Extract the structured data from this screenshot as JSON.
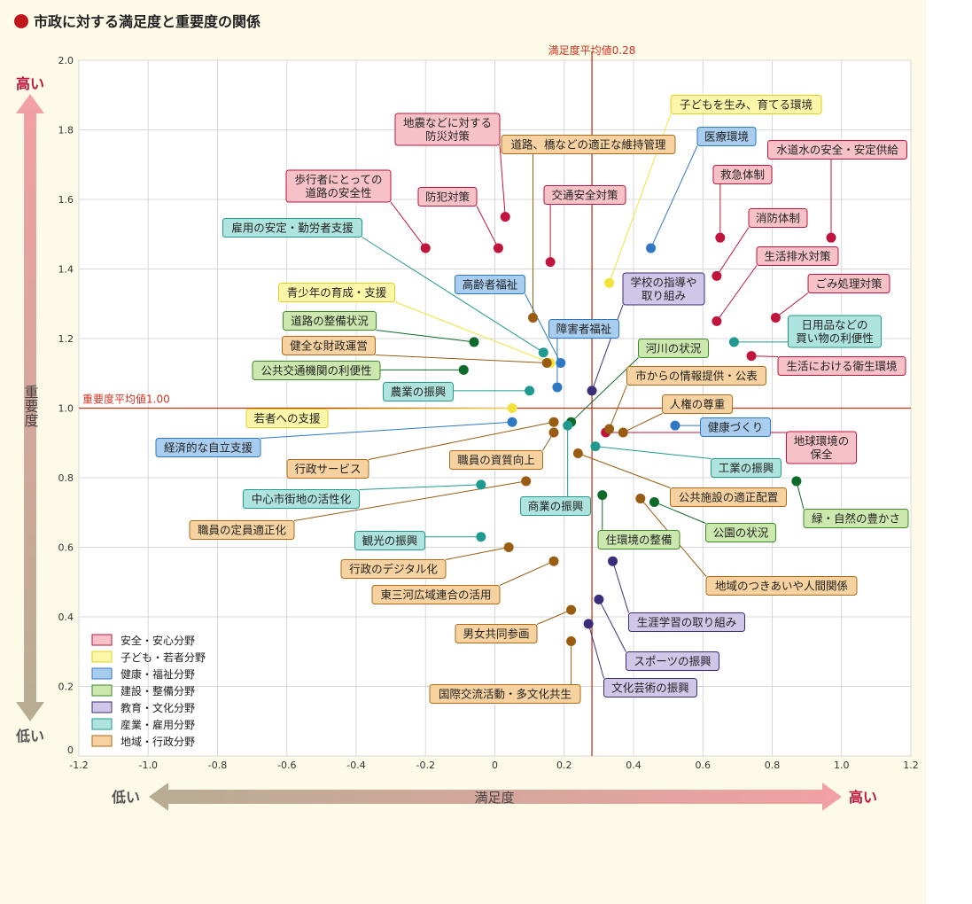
{
  "title": "市政に対する満足度と重要度の関係",
  "title_bullet_color": "#c0161e",
  "chart_data": {
    "type": "scatter",
    "title": "市政に対する満足度と重要度の関係",
    "xlabel": "満足度",
    "ylabel": "重要度",
    "x_low_label": "低い",
    "x_high_label": "高い",
    "y_low_label": "低い",
    "y_high_label": "高い",
    "xlim": [
      -1.2,
      1.2
    ],
    "ylim": [
      0,
      2.0
    ],
    "x_ticks": [
      "-1.2",
      "-1.0",
      "-0.8",
      "-0.6",
      "-0.4",
      "-0.2",
      "0",
      "0.2",
      "0.4",
      "0.6",
      "0.8",
      "1.0",
      "1.2"
    ],
    "y_ticks": [
      "0",
      "0.2",
      "0.4",
      "0.6",
      "0.8",
      "1.0",
      "1.2",
      "1.4",
      "1.6",
      "1.8",
      "2.0"
    ],
    "grid": true,
    "avg_x_value": 0.28,
    "avg_x_label": "満足度平均値0.28",
    "avg_y_value": 1.0,
    "avg_y_label": "重要度平均値1.00",
    "legend_position": "bottom-left",
    "categories": [
      {
        "key": "safety",
        "name": "安全・安心分野",
        "dot": "#c0143c",
        "box_fill": "#f6c2c8",
        "box_border": "#c0143c"
      },
      {
        "key": "kids",
        "name": "子ども・若者分野",
        "dot": "#f3e23a",
        "box_fill": "#fbf6a8",
        "box_border": "#e2cf1e"
      },
      {
        "key": "health",
        "name": "健康・福祉分野",
        "dot": "#2f78c4",
        "box_fill": "#a9cdee",
        "box_border": "#2f78c4"
      },
      {
        "key": "build",
        "name": "建設・整備分野",
        "dot": "#0e6a2a",
        "box_fill": "#cde8ae",
        "box_border": "#3c8a2c"
      },
      {
        "key": "edu",
        "name": "教育・文化分野",
        "dot": "#3a2e7a",
        "box_fill": "#cfc6e8",
        "box_border": "#3a2e7a"
      },
      {
        "key": "industry",
        "name": "産業・雇用分野",
        "dot": "#209a8e",
        "box_fill": "#aee3de",
        "box_border": "#209a8e"
      },
      {
        "key": "region",
        "name": "地域・行政分野",
        "dot": "#9a5c10",
        "box_fill": "#f6d2a0",
        "box_border": "#b0691a"
      }
    ],
    "points": [
      {
        "label": "地震などに対する\n防災対策",
        "cat": "safety",
        "x": 0.03,
        "y": 1.55
      },
      {
        "label": "歩行者にとっての\n道路の安全性",
        "cat": "safety",
        "x": -0.2,
        "y": 1.46
      },
      {
        "label": "防犯対策",
        "cat": "safety",
        "x": 0.01,
        "y": 1.46
      },
      {
        "label": "交通安全対策",
        "cat": "safety",
        "x": 0.16,
        "y": 1.42
      },
      {
        "label": "救急体制",
        "cat": "safety",
        "x": 0.65,
        "y": 1.49
      },
      {
        "label": "水道水の安全・安定供給",
        "cat": "safety",
        "x": 0.97,
        "y": 1.49
      },
      {
        "label": "消防体制",
        "cat": "safety",
        "x": 0.64,
        "y": 1.38
      },
      {
        "label": "生活排水対策",
        "cat": "safety",
        "x": 0.64,
        "y": 1.25
      },
      {
        "label": "ごみ処理対策",
        "cat": "safety",
        "x": 0.81,
        "y": 1.26
      },
      {
        "label": "生活における衛生環境",
        "cat": "safety",
        "x": 0.74,
        "y": 1.15
      },
      {
        "label": "地球環境の\n保全",
        "cat": "safety",
        "x": 0.32,
        "y": 0.93
      },
      {
        "label": "子どもを生み、育てる環境",
        "cat": "kids",
        "x": 0.33,
        "y": 1.36
      },
      {
        "label": "青少年の育成・支援",
        "cat": "kids",
        "x": 0.16,
        "y": 1.13
      },
      {
        "label": "若者への支援",
        "cat": "kids",
        "x": 0.05,
        "y": 1.0
      },
      {
        "label": "医療環境",
        "cat": "health",
        "x": 0.45,
        "y": 1.46
      },
      {
        "label": "高齢者福祉",
        "cat": "health",
        "x": 0.19,
        "y": 1.13
      },
      {
        "label": "障害者福祉",
        "cat": "health",
        "x": 0.18,
        "y": 1.06
      },
      {
        "label": "健康づくり",
        "cat": "health",
        "x": 0.52,
        "y": 0.95
      },
      {
        "label": "経済的な自立支援",
        "cat": "health",
        "x": 0.05,
        "y": 0.96
      },
      {
        "label": "道路の整備状況",
        "cat": "build",
        "x": -0.06,
        "y": 1.19
      },
      {
        "label": "公共交通機関の利便性",
        "cat": "build",
        "x": -0.09,
        "y": 1.11
      },
      {
        "label": "河川の状況",
        "cat": "build",
        "x": 0.22,
        "y": 0.96
      },
      {
        "label": "緑・自然の豊かさ",
        "cat": "build",
        "x": 0.87,
        "y": 0.79
      },
      {
        "label": "住環境の整備",
        "cat": "build",
        "x": 0.31,
        "y": 0.75
      },
      {
        "label": "公園の状況",
        "cat": "build",
        "x": 0.46,
        "y": 0.73
      },
      {
        "label": "学校の指導や\n取り組み",
        "cat": "edu",
        "x": 0.28,
        "y": 1.05
      },
      {
        "label": "生涯学習の取り組み",
        "cat": "edu",
        "x": 0.34,
        "y": 0.56
      },
      {
        "label": "スポーツの振興",
        "cat": "edu",
        "x": 0.3,
        "y": 0.45
      },
      {
        "label": "文化芸術の振興",
        "cat": "edu",
        "x": 0.27,
        "y": 0.38
      },
      {
        "label": "雇用の安定・勤労者支援",
        "cat": "industry",
        "x": 0.14,
        "y": 1.16
      },
      {
        "label": "日用品などの\n買い物の利便性",
        "cat": "industry",
        "x": 0.69,
        "y": 1.19
      },
      {
        "label": "農業の振興",
        "cat": "industry",
        "x": 0.1,
        "y": 1.05
      },
      {
        "label": "商業の振興",
        "cat": "industry",
        "x": 0.21,
        "y": 0.95
      },
      {
        "label": "工業の振興",
        "cat": "industry",
        "x": 0.29,
        "y": 0.89
      },
      {
        "label": "中心市街地の活性化",
        "cat": "industry",
        "x": -0.04,
        "y": 0.78
      },
      {
        "label": "観光の振興",
        "cat": "industry",
        "x": -0.04,
        "y": 0.63
      },
      {
        "label": "健全な財政運営",
        "cat": "region",
        "x": 0.15,
        "y": 1.13
      },
      {
        "label": "道路、橋などの適正な維持管理",
        "cat": "region",
        "x": 0.11,
        "y": 1.26
      },
      {
        "label": "市からの情報提供・公表",
        "cat": "region",
        "x": 0.33,
        "y": 0.94
      },
      {
        "label": "人権の尊重",
        "cat": "region",
        "x": 0.37,
        "y": 0.93
      },
      {
        "label": "行政サービス",
        "cat": "region",
        "x": 0.17,
        "y": 0.96
      },
      {
        "label": "職員の資質向上",
        "cat": "region",
        "x": 0.17,
        "y": 0.93
      },
      {
        "label": "公共施設の適正配置",
        "cat": "region",
        "x": 0.24,
        "y": 0.87
      },
      {
        "label": "職員の定員適正化",
        "cat": "region",
        "x": 0.09,
        "y": 0.79
      },
      {
        "label": "行政のデジタル化",
        "cat": "region",
        "x": 0.04,
        "y": 0.6
      },
      {
        "label": "東三河広域連合の活用",
        "cat": "region",
        "x": 0.17,
        "y": 0.56
      },
      {
        "label": "地域のつきあいや人間関係",
        "cat": "region",
        "x": 0.42,
        "y": 0.74
      },
      {
        "label": "男女共同参画",
        "cat": "region",
        "x": 0.22,
        "y": 0.42
      },
      {
        "label": "国際交流活動・多文化共生",
        "cat": "region",
        "x": 0.22,
        "y": 0.33
      }
    ]
  }
}
